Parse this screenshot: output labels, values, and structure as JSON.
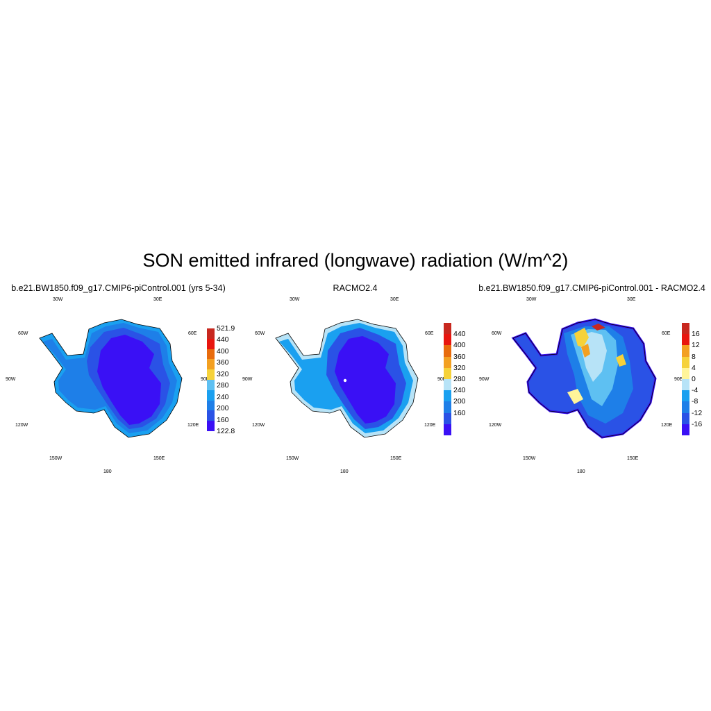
{
  "title": "SON emitted infrared (longwave) radiation (W/m^2)",
  "panels": [
    {
      "title": "b.e21.BW1850.f09_g17.CMIP6-piControl.001 (yrs 5-34)",
      "coords": {
        "top_left": "30W",
        "top_right": "30E",
        "left_upper": "60W",
        "right_upper": "60E",
        "left_mid": "90W",
        "right_mid": "90E",
        "left_lower": "120W",
        "right_lower": "120E",
        "bottom_left": "150W",
        "bottom_right": "150E",
        "bottom": "180"
      },
      "colorbar": {
        "colors": [
          "#3a10f5",
          "#2a52e6",
          "#1e7fe8",
          "#1aa0f0",
          "#5ec0f2",
          "#f6d23a",
          "#f3a021",
          "#e86b0c",
          "#e8160f",
          "#c8281f"
        ],
        "labels": [
          "521.9",
          "440",
          "400",
          "360",
          "320",
          "280",
          "240",
          "200",
          "160",
          "122.8"
        ]
      }
    },
    {
      "title": "RACMO2.4",
      "coords": {
        "top_left": "30W",
        "top_right": "30E",
        "left_upper": "60W",
        "right_upper": "60E",
        "left_mid": "90W",
        "right_mid": "90E",
        "left_lower": "120W",
        "right_lower": "120E",
        "bottom_left": "150W",
        "bottom_right": "150E",
        "bottom": "180"
      },
      "colorbar": {
        "colors": [
          "#3a10f5",
          "#2a52e6",
          "#1e7fe8",
          "#1aa0f0",
          "#b7e3f7",
          "#f6d23a",
          "#f3a021",
          "#e86b0c",
          "#e8160f",
          "#c8281f"
        ],
        "labels": [
          "440",
          "400",
          "360",
          "320",
          "280",
          "240",
          "200",
          "160"
        ]
      }
    },
    {
      "title": "b.e21.BW1850.f09_g17.CMIP6-piControl.001 - RACMO2.4",
      "coords": {
        "top_left": "30W",
        "top_right": "30E",
        "left_upper": "60W",
        "right_upper": "60E",
        "left_mid": "90W",
        "right_mid": "90E",
        "left_lower": "120W",
        "right_lower": "120E",
        "bottom_left": "150W",
        "bottom_right": "150E",
        "bottom": "180"
      },
      "colorbar": {
        "colors": [
          "#3a10f5",
          "#2a52e6",
          "#1e7fe8",
          "#1aa0f0",
          "#b7e3f7",
          "#fff59a",
          "#f6d23a",
          "#f3a021",
          "#e8160f",
          "#c8281f"
        ],
        "labels": [
          "16",
          "12",
          "8",
          "4",
          "0",
          "-4",
          "-8",
          "-12",
          "-16"
        ]
      }
    }
  ]
}
